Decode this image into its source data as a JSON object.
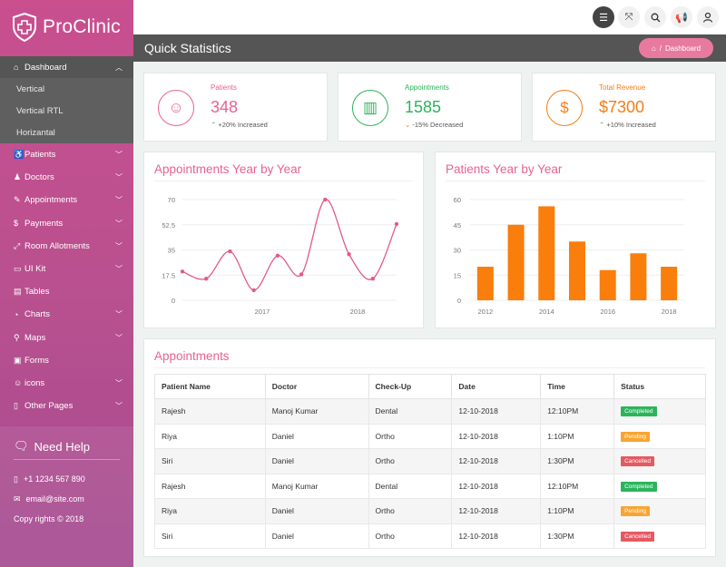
{
  "app": {
    "name": "ProClinic"
  },
  "sidebar": {
    "items": [
      {
        "label": "Dashboard",
        "icon": "home-icon",
        "glyph": "⌂"
      },
      {
        "label": "Patients",
        "icon": "users-icon",
        "glyph": "♿"
      },
      {
        "label": "Doctors",
        "icon": "doctor-icon",
        "glyph": "♟"
      },
      {
        "label": "Appointments",
        "icon": "edit-icon",
        "glyph": "✎"
      },
      {
        "label": "Payments",
        "icon": "dollar-icon",
        "glyph": "$"
      },
      {
        "label": "Room Allotments",
        "icon": "bed-icon",
        "glyph": "⤢"
      },
      {
        "label": "UI Kit",
        "icon": "folder-icon",
        "glyph": "▭"
      },
      {
        "label": "Tables",
        "icon": "table-icon",
        "glyph": "▤"
      },
      {
        "label": "Charts",
        "icon": "chart-icon",
        "glyph": "◔"
      },
      {
        "label": "Maps",
        "icon": "map-pin-icon",
        "glyph": "⚲"
      },
      {
        "label": "Forms",
        "icon": "form-icon",
        "glyph": "▣"
      },
      {
        "label": "icons",
        "icon": "smile-icon",
        "glyph": "☺"
      },
      {
        "label": "Other Pages",
        "icon": "file-icon",
        "glyph": "▯"
      }
    ],
    "submenu": [
      "Vertical",
      "Vertical RTL",
      "Horizantal"
    ]
  },
  "help": {
    "title": "Need Help",
    "phone": "+1 1234 567 890",
    "email": "email@site.com",
    "copyright": "Copy rights © 2018"
  },
  "header": {
    "title": "Quick Statistics",
    "breadcrumb": "Dashboard",
    "breadcrumb_sep": "/"
  },
  "stats": [
    {
      "label": "Patients",
      "value": "348",
      "trend": "+20% Increased",
      "arrow": "⌃",
      "color": "#e8628f",
      "icon": "user-icon",
      "glyph": "☺"
    },
    {
      "label": "Appointments",
      "value": "1585",
      "trend": "-15% Decreased",
      "arrow": "⌄",
      "color": "#2cb45c",
      "icon": "bar-chart-icon",
      "glyph": "▥"
    },
    {
      "label": "Total Revenue",
      "value": "$7300",
      "trend": "+10% Increased",
      "arrow": "⌃",
      "color": "#f47d15",
      "icon": "dollar-icon",
      "glyph": "$"
    }
  ],
  "chart_data": [
    {
      "type": "line",
      "title": "Appointments Year by Year",
      "x_ticks": [
        "2017",
        "2018"
      ],
      "y_ticks": [
        "70",
        "52.5",
        "35",
        "17.5",
        "0"
      ],
      "ylim": [
        0,
        70
      ],
      "values": [
        20,
        15,
        34,
        7,
        31,
        18,
        70,
        32,
        15,
        53
      ],
      "color": "#e05a8c",
      "grid": true
    },
    {
      "type": "bar",
      "title": "Patients Year by Year",
      "x_ticks": [
        "2012",
        "2014",
        "2016",
        "2018"
      ],
      "y_ticks": [
        "60",
        "45",
        "30",
        "15",
        "0"
      ],
      "ylim": [
        0,
        60
      ],
      "values": [
        20,
        45,
        56,
        35,
        18,
        28,
        20
      ],
      "color": "#f97e0b",
      "grid": true
    }
  ],
  "appointments": {
    "title": "Appointments",
    "columns": [
      "Patient Name",
      "Doctor",
      "Check-Up",
      "Date",
      "Time",
      "Status"
    ],
    "rows": [
      [
        "Rajesh",
        "Manoj Kumar",
        "Dental",
        "12-10-2018",
        "12:10PM",
        "Completed"
      ],
      [
        "Riya",
        "Daniel",
        "Ortho",
        "12-10-2018",
        "1:10PM",
        "Pending"
      ],
      [
        "Siri",
        "Daniel",
        "Ortho",
        "12-10-2018",
        "1:30PM",
        "Cancelled"
      ],
      [
        "Rajesh",
        "Manoj Kumar",
        "Dental",
        "12-10-2018",
        "12:10PM",
        "Completed"
      ],
      [
        "Riya",
        "Daniel",
        "Ortho",
        "12-10-2018",
        "1:10PM",
        "Pending"
      ],
      [
        "Siri",
        "Daniel",
        "Ortho",
        "12-10-2018",
        "1:30PM",
        "Cancelled"
      ]
    ],
    "status_colors": {
      "Completed": "#2cb45c",
      "Pending": "#f7a531",
      "Cancelled": "#e35a63"
    }
  }
}
